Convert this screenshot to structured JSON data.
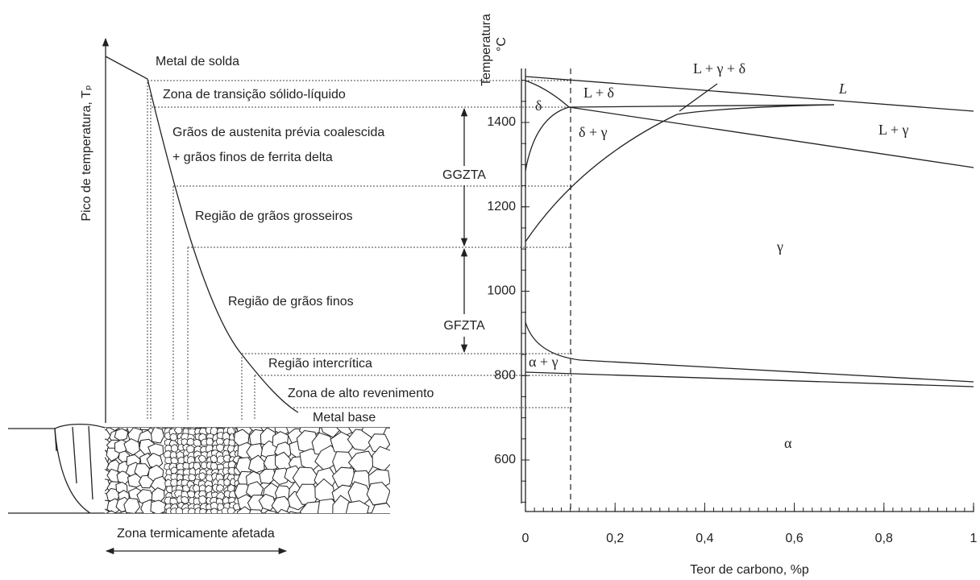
{
  "left_diagram": {
    "y_axis_label": "Pico de temperatura, Tₚ",
    "zones": [
      "Metal de solda",
      "Zona de transição sólido-líquido",
      "Grãos de austenita prévia coalescida",
      "+ grãos finos de ferrita delta",
      "Região de grãos grosseiros",
      "Região de grãos finos",
      "Região intercrítica",
      "Zona de alto revenimento",
      "Metal base"
    ],
    "haz_labels": [
      "GGZTA",
      "GFZTA"
    ],
    "bottom_label": "Zona termicamente afetada"
  },
  "phase_diagram": {
    "y_axis_label": "Temperatura",
    "y_unit": "°C",
    "x_axis_label": "Teor de carbono, %p",
    "yticks": [
      600,
      800,
      1000,
      1200,
      1400
    ],
    "xticks": [
      0,
      {
        "value": 0.2,
        "label": "0,2"
      },
      {
        "value": 0.4,
        "label": "0,4"
      },
      {
        "value": 0.6,
        "label": "0,6"
      },
      {
        "value": 0.8,
        "label": "0,8"
      },
      1
    ],
    "phase_labels": [
      "L + δ",
      "L + γ + δ",
      "L",
      "δ",
      "δ + γ",
      "L + γ",
      "γ",
      "α + γ",
      "α"
    ]
  }
}
